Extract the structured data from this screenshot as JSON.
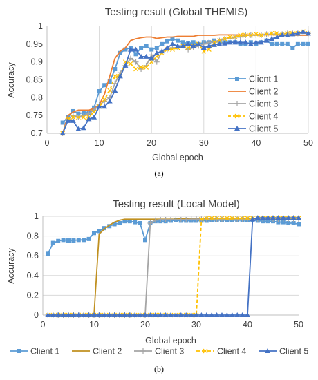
{
  "chart_data": [
    {
      "type": "line",
      "title": "Testing result (Global THEMIS)",
      "xlabel": "Global epoch",
      "ylabel": "Accuracy",
      "xlim": [
        0,
        50
      ],
      "ylim": [
        0.7,
        1.0
      ],
      "xticks": [
        "0",
        "10",
        "20",
        "30",
        "40",
        "50"
      ],
      "yticks": [
        "0.7",
        "0.75",
        "0.8",
        "0.85",
        "0.9",
        "0.95",
        "1"
      ],
      "grid": "vertical",
      "legend": "right",
      "caption": "(a)",
      "colors": [
        "#5b9bd5",
        "#ed7d31",
        "#a5a5a5",
        "#ffc000",
        "#4472c4"
      ],
      "series": [
        {
          "name": "Client 1",
          "marker": "square",
          "x": [
            3,
            4,
            5,
            6,
            7,
            8,
            9,
            10,
            11,
            12,
            13,
            14,
            15,
            16,
            17,
            18,
            19,
            20,
            21,
            22,
            23,
            24,
            25,
            26,
            27,
            28,
            29,
            30,
            31,
            32,
            33,
            34,
            35,
            36,
            37,
            38,
            39,
            40,
            41,
            42,
            43,
            44,
            45,
            46,
            47,
            48,
            49,
            50
          ],
          "values": [
            0.73,
            0.745,
            0.762,
            0.755,
            0.758,
            0.758,
            0.772,
            0.818,
            0.835,
            0.845,
            0.88,
            0.925,
            0.935,
            0.94,
            0.922,
            0.94,
            0.944,
            0.935,
            0.94,
            0.95,
            0.958,
            0.965,
            0.96,
            0.955,
            0.952,
            0.955,
            0.95,
            0.955,
            0.955,
            0.96,
            0.955,
            0.955,
            0.955,
            0.955,
            0.95,
            0.95,
            0.955,
            0.95,
            0.955,
            0.96,
            0.95,
            0.95,
            0.95,
            0.95,
            0.94,
            0.95,
            0.95,
            0.95
          ]
        },
        {
          "name": "Client 2",
          "marker": "none",
          "x": [
            3,
            4,
            5,
            6,
            7,
            8,
            9,
            10,
            11,
            12,
            13,
            14,
            15,
            16,
            17,
            18,
            19,
            20,
            21,
            22,
            23,
            24,
            25,
            26,
            27,
            28,
            29,
            30,
            31,
            32,
            33,
            34,
            35,
            36,
            37,
            38,
            39,
            40,
            41,
            42,
            43,
            44,
            45,
            46,
            47,
            48,
            49,
            50
          ],
          "values": [
            0.7,
            0.75,
            0.76,
            0.765,
            0.765,
            0.765,
            0.77,
            0.78,
            0.81,
            0.86,
            0.91,
            0.93,
            0.94,
            0.96,
            0.965,
            0.968,
            0.97,
            0.97,
            0.966,
            0.968,
            0.97,
            0.97,
            0.972,
            0.972,
            0.972,
            0.972,
            0.975,
            0.975,
            0.975,
            0.975,
            0.976,
            0.976,
            0.976,
            0.976,
            0.976,
            0.976,
            0.976,
            0.976,
            0.976,
            0.976,
            0.976,
            0.976,
            0.975,
            0.975,
            0.975,
            0.975,
            0.975,
            0.975
          ]
        },
        {
          "name": "Client 3",
          "marker": "plus",
          "x": [
            3,
            4,
            5,
            6,
            7,
            8,
            9,
            10,
            11,
            12,
            13,
            14,
            15,
            16,
            17,
            18,
            19,
            20,
            21,
            22,
            23,
            24,
            25,
            26,
            27,
            28,
            29,
            30,
            31,
            32,
            33,
            34,
            35,
            36,
            37,
            38,
            39,
            40,
            41,
            42,
            43,
            44,
            45,
            46,
            47,
            48,
            49,
            50
          ],
          "values": [
            0.7,
            0.74,
            0.75,
            0.745,
            0.75,
            0.755,
            0.765,
            0.78,
            0.79,
            0.8,
            0.84,
            0.87,
            0.89,
            0.91,
            0.9,
            0.88,
            0.89,
            0.92,
            0.9,
            0.93,
            0.935,
            0.94,
            0.94,
            0.945,
            0.935,
            0.94,
            0.945,
            0.95,
            0.955,
            0.955,
            0.96,
            0.965,
            0.965,
            0.97,
            0.97,
            0.975,
            0.975,
            0.975,
            0.975,
            0.978,
            0.978,
            0.978,
            0.978,
            0.98,
            0.98,
            0.98,
            0.98,
            0.98
          ]
        },
        {
          "name": "Client 4",
          "marker": "x",
          "x": [
            3,
            4,
            5,
            6,
            7,
            8,
            9,
            10,
            11,
            12,
            13,
            14,
            15,
            16,
            17,
            18,
            19,
            20,
            21,
            22,
            23,
            24,
            25,
            26,
            27,
            28,
            29,
            30,
            31,
            32,
            33,
            34,
            35,
            36,
            37,
            38,
            39,
            40,
            41,
            42,
            43,
            44,
            45,
            46,
            47,
            48,
            49,
            50
          ],
          "values": [
            0.7,
            0.74,
            0.745,
            0.745,
            0.745,
            0.745,
            0.76,
            0.775,
            0.795,
            0.82,
            0.86,
            0.86,
            0.9,
            0.895,
            0.88,
            0.885,
            0.885,
            0.9,
            0.915,
            0.925,
            0.935,
            0.935,
            0.94,
            0.945,
            0.94,
            0.945,
            0.95,
            0.93,
            0.935,
            0.955,
            0.96,
            0.965,
            0.97,
            0.97,
            0.975,
            0.975,
            0.975,
            0.978,
            0.975,
            0.978,
            0.98,
            0.98,
            0.978,
            0.98,
            0.98,
            0.98,
            0.985,
            0.98
          ]
        },
        {
          "name": "Client 5",
          "marker": "triangle",
          "x": [
            3,
            4,
            5,
            6,
            7,
            8,
            9,
            10,
            11,
            12,
            13,
            14,
            15,
            16,
            17,
            18,
            19,
            20,
            21,
            22,
            23,
            24,
            25,
            26,
            27,
            28,
            29,
            30,
            31,
            32,
            33,
            34,
            35,
            36,
            37,
            38,
            39,
            40,
            41,
            42,
            43,
            44,
            45,
            46,
            47,
            48,
            49,
            50
          ],
          "values": [
            0.7,
            0.735,
            0.735,
            0.712,
            0.715,
            0.74,
            0.745,
            0.775,
            0.775,
            0.79,
            0.82,
            0.86,
            0.89,
            0.935,
            0.935,
            0.915,
            0.915,
            0.91,
            0.925,
            0.93,
            0.94,
            0.95,
            0.945,
            0.945,
            0.95,
            0.945,
            0.95,
            0.94,
            0.945,
            0.948,
            0.95,
            0.952,
            0.955,
            0.955,
            0.955,
            0.955,
            0.95,
            0.955,
            0.955,
            0.96,
            0.965,
            0.97,
            0.975,
            0.975,
            0.978,
            0.98,
            0.985,
            0.98
          ]
        }
      ]
    },
    {
      "type": "line",
      "title": "Testing result (Local Model)",
      "xlabel": "Global epoch",
      "ylabel": "Accuracy",
      "xlim": [
        0,
        50
      ],
      "ylim": [
        0,
        1
      ],
      "xticks": [
        "0",
        "10",
        "20",
        "30",
        "40",
        "50"
      ],
      "yticks": [
        "0",
        "0.2",
        "0.4",
        "0.6",
        "0.8",
        "1"
      ],
      "grid": "horizontal",
      "legend": "bottom",
      "caption": "(b)",
      "colors": [
        "#5b9bd5",
        "#c09020",
        "#a5a5a5",
        "#ffc000",
        "#4472c4"
      ],
      "series": [
        {
          "name": "Client 1",
          "marker": "square",
          "x": [
            1,
            2,
            3,
            4,
            5,
            6,
            7,
            8,
            9,
            10,
            11,
            12,
            13,
            14,
            15,
            16,
            17,
            18,
            19,
            20,
            21,
            22,
            23,
            24,
            25,
            26,
            27,
            28,
            29,
            30,
            31,
            32,
            33,
            34,
            35,
            36,
            37,
            38,
            39,
            40,
            41,
            42,
            43,
            44,
            45,
            46,
            47,
            48,
            49,
            50
          ],
          "values": [
            0.62,
            0.73,
            0.75,
            0.76,
            0.755,
            0.755,
            0.76,
            0.76,
            0.77,
            0.83,
            0.85,
            0.88,
            0.9,
            0.92,
            0.93,
            0.95,
            0.95,
            0.94,
            0.93,
            0.76,
            0.93,
            0.95,
            0.95,
            0.95,
            0.955,
            0.96,
            0.955,
            0.955,
            0.955,
            0.955,
            0.955,
            0.955,
            0.96,
            0.96,
            0.96,
            0.96,
            0.96,
            0.96,
            0.96,
            0.96,
            0.96,
            0.955,
            0.95,
            0.95,
            0.95,
            0.94,
            0.94,
            0.93,
            0.93,
            0.92
          ]
        },
        {
          "name": "Client 2",
          "marker": "none",
          "x": [
            1,
            2,
            3,
            4,
            5,
            6,
            7,
            8,
            9,
            10,
            11,
            12,
            13,
            14,
            15,
            16,
            17,
            18,
            19,
            20,
            21,
            22,
            23,
            24,
            25,
            26,
            27,
            28,
            29,
            30,
            31,
            32,
            33,
            34,
            35,
            36,
            37,
            38,
            39,
            40,
            41,
            42,
            43,
            44,
            45,
            46,
            47,
            48,
            49,
            50
          ],
          "values": [
            0,
            0,
            0,
            0,
            0,
            0,
            0,
            0,
            0,
            0,
            0.82,
            0.87,
            0.91,
            0.94,
            0.96,
            0.97,
            0.97,
            0.97,
            0.97,
            0.97,
            0.97,
            0.97,
            0.97,
            0.97,
            0.97,
            0.97,
            0.975,
            0.975,
            0.975,
            0.975,
            0.98,
            0.98,
            0.98,
            0.98,
            0.98,
            0.98,
            0.98,
            0.98,
            0.98,
            0.98,
            0.98,
            0.98,
            0.98,
            0.98,
            0.98,
            0.98,
            0.98,
            0.98,
            0.98,
            0.98
          ]
        },
        {
          "name": "Client 3",
          "marker": "plus",
          "x": [
            1,
            2,
            3,
            4,
            5,
            6,
            7,
            8,
            9,
            10,
            11,
            12,
            13,
            14,
            15,
            16,
            17,
            18,
            19,
            20,
            21,
            22,
            23,
            24,
            25,
            26,
            27,
            28,
            29,
            30,
            31,
            32,
            33,
            34,
            35,
            36,
            37,
            38,
            39,
            40,
            41,
            42,
            43,
            44,
            45,
            46,
            47,
            48,
            49,
            50
          ],
          "values": [
            0,
            0,
            0,
            0,
            0,
            0,
            0,
            0,
            0,
            0,
            0,
            0,
            0,
            0,
            0,
            0,
            0,
            0,
            0,
            0,
            0.93,
            0.96,
            0.965,
            0.965,
            0.965,
            0.965,
            0.965,
            0.965,
            0.97,
            0.97,
            0.97,
            0.97,
            0.97,
            0.97,
            0.97,
            0.97,
            0.97,
            0.97,
            0.97,
            0.97,
            0.97,
            0.97,
            0.97,
            0.97,
            0.97,
            0.97,
            0.97,
            0.97,
            0.97,
            0.97
          ]
        },
        {
          "name": "Client 4",
          "marker": "x",
          "x": [
            1,
            2,
            3,
            4,
            5,
            6,
            7,
            8,
            9,
            10,
            11,
            12,
            13,
            14,
            15,
            16,
            17,
            18,
            19,
            20,
            21,
            22,
            23,
            24,
            25,
            26,
            27,
            28,
            29,
            30,
            31,
            32,
            33,
            34,
            35,
            36,
            37,
            38,
            39,
            40,
            41,
            42,
            43,
            44,
            45,
            46,
            47,
            48,
            49,
            50
          ],
          "values": [
            0,
            0,
            0,
            0,
            0,
            0,
            0,
            0,
            0,
            0,
            0,
            0,
            0,
            0,
            0,
            0,
            0,
            0,
            0,
            0,
            0,
            0,
            0,
            0,
            0,
            0,
            0,
            0,
            0,
            0,
            0.97,
            0.98,
            0.98,
            0.98,
            0.98,
            0.98,
            0.98,
            0.98,
            0.98,
            0.98,
            0.98,
            0.98,
            0.98,
            0.98,
            0.98,
            0.98,
            0.98,
            0.98,
            0.98,
            0.98
          ]
        },
        {
          "name": "Client 5",
          "marker": "triangle",
          "x": [
            1,
            2,
            3,
            4,
            5,
            6,
            7,
            8,
            9,
            10,
            11,
            12,
            13,
            14,
            15,
            16,
            17,
            18,
            19,
            20,
            21,
            22,
            23,
            24,
            25,
            26,
            27,
            28,
            29,
            30,
            31,
            32,
            33,
            34,
            35,
            36,
            37,
            38,
            39,
            40,
            41,
            42,
            43,
            44,
            45,
            46,
            47,
            48,
            49,
            50
          ],
          "values": [
            0,
            0,
            0,
            0,
            0,
            0,
            0,
            0,
            0,
            0,
            0,
            0,
            0,
            0,
            0,
            0,
            0,
            0,
            0,
            0,
            0,
            0,
            0,
            0,
            0,
            0,
            0,
            0,
            0,
            0,
            0,
            0,
            0,
            0,
            0,
            0,
            0,
            0,
            0,
            0,
            0.97,
            0.985,
            0.985,
            0.985,
            0.985,
            0.985,
            0.985,
            0.985,
            0.985,
            0.985
          ]
        }
      ]
    }
  ]
}
